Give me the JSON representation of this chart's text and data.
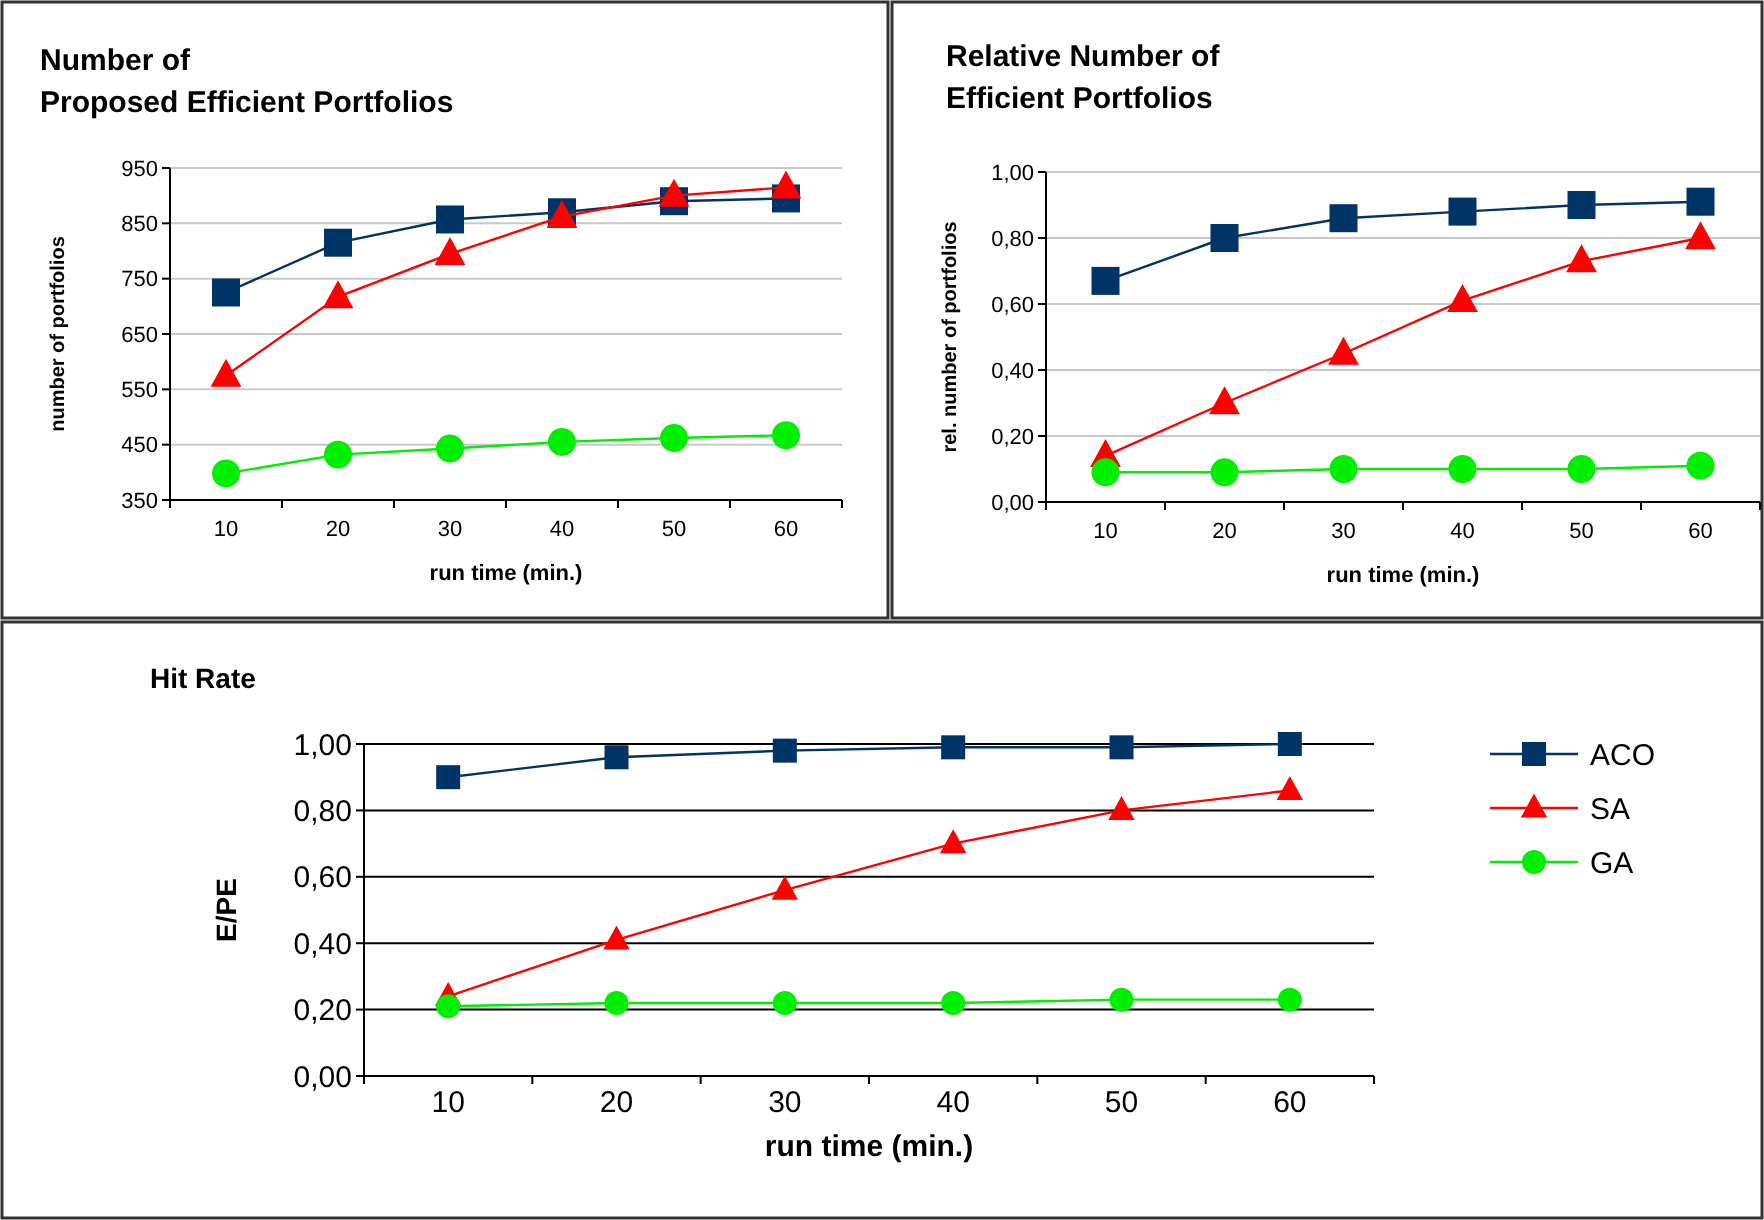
{
  "chart_data": [
    {
      "type": "line",
      "title": "Number of\nProposed Efficient Portfolios",
      "xlabel": "run time (min.)",
      "ylabel": "number of portfolios",
      "categories": [
        "10",
        "20",
        "30",
        "40",
        "50",
        "60"
      ],
      "ylim": [
        350,
        950
      ],
      "yticks": [
        350,
        450,
        550,
        650,
        750,
        850,
        950
      ],
      "grid": "y",
      "legend": false,
      "series": [
        {
          "color": "#003366",
          "marker": "square",
          "values": [
            725,
            815,
            857,
            870,
            890,
            895
          ]
        },
        {
          "color": "#ff0000",
          "marker": "triangle",
          "values": [
            575,
            717,
            795,
            862,
            900,
            915
          ]
        },
        {
          "color": "#00ee00",
          "marker": "circle",
          "values": [
            398,
            432,
            443,
            455,
            462,
            467
          ]
        }
      ]
    },
    {
      "type": "line",
      "title": "Relative Number of\nEfficient Portfolios",
      "xlabel": "run time (min.)",
      "ylabel": "rel. number of portfolios",
      "categories": [
        "10",
        "20",
        "30",
        "40",
        "50",
        "60"
      ],
      "ylim": [
        0,
        1
      ],
      "yticks": [
        {
          "value": 0,
          "label": "0,00"
        },
        {
          "value": 0.2,
          "label": "0,20"
        },
        {
          "value": 0.4,
          "label": "0,40"
        },
        {
          "value": 0.6,
          "label": "0,60"
        },
        {
          "value": 0.8,
          "label": "0,80"
        },
        {
          "value": 1,
          "label": "1,00"
        }
      ],
      "grid": "y",
      "legend": false,
      "series": [
        {
          "color": "#003366",
          "marker": "square",
          "values": [
            0.67,
            0.8,
            0.86,
            0.88,
            0.9,
            0.91
          ]
        },
        {
          "color": "#ff0000",
          "marker": "triangle",
          "values": [
            0.14,
            0.3,
            0.45,
            0.61,
            0.73,
            0.8
          ]
        },
        {
          "color": "#00ee00",
          "marker": "circle",
          "values": [
            0.09,
            0.09,
            0.1,
            0.1,
            0.1,
            0.11
          ]
        }
      ]
    },
    {
      "type": "line",
      "title": "Hit Rate",
      "xlabel": "run time (min.)",
      "ylabel": "E/PE",
      "categories": [
        "10",
        "20",
        "30",
        "40",
        "50",
        "60"
      ],
      "ylim": [
        0,
        1
      ],
      "yticks": [
        {
          "value": 0,
          "label": "0,00"
        },
        {
          "value": 0.2,
          "label": "0,20"
        },
        {
          "value": 0.4,
          "label": "0,40"
        },
        {
          "value": 0.6,
          "label": "0,60"
        },
        {
          "value": 0.8,
          "label": "0,80"
        },
        {
          "value": 1,
          "label": "1,00"
        }
      ],
      "grid": "y",
      "legend": "right",
      "series": [
        {
          "name": "ACO",
          "color": "#003366",
          "marker": "square",
          "values": [
            0.9,
            0.96,
            0.98,
            0.99,
            0.99,
            1.0
          ]
        },
        {
          "name": "SA",
          "color": "#ff0000",
          "marker": "triangle",
          "values": [
            0.24,
            0.41,
            0.56,
            0.7,
            0.8,
            0.86
          ]
        },
        {
          "name": "GA",
          "color": "#00ee00",
          "marker": "circle",
          "values": [
            0.21,
            0.22,
            0.22,
            0.22,
            0.23,
            0.23
          ]
        }
      ]
    }
  ]
}
